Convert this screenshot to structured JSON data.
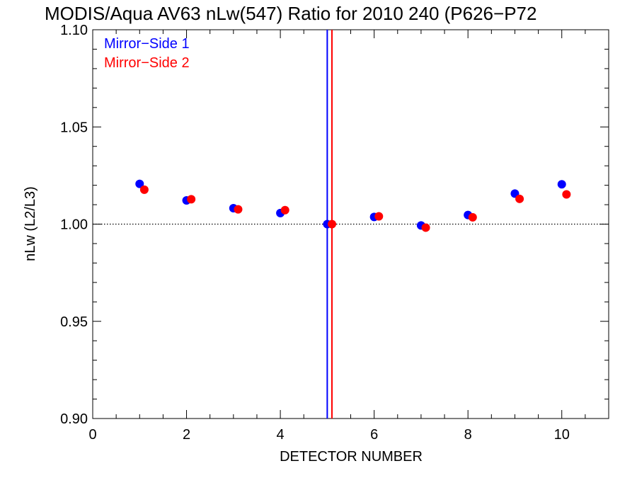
{
  "chart_data": {
    "type": "scatter",
    "title": "MODIS/Aqua AV63 nLw(547) Ratio for 2010 240 (P626−P72",
    "xlabel": "DETECTOR NUMBER",
    "ylabel": "nLw (L2/L3)",
    "xlim": [
      0,
      11
    ],
    "ylim": [
      0.9,
      1.1
    ],
    "x_ticks": [
      {
        "value": 0,
        "label": "0"
      },
      {
        "value": 2,
        "label": "2"
      },
      {
        "value": 4,
        "label": "4"
      },
      {
        "value": 6,
        "label": "6"
      },
      {
        "value": 8,
        "label": "8"
      },
      {
        "value": 10,
        "label": "10"
      }
    ],
    "y_ticks": [
      {
        "value": 0.9,
        "label": "0.90"
      },
      {
        "value": 0.95,
        "label": "0.95"
      },
      {
        "value": 1.0,
        "label": "1.00"
      },
      {
        "value": 1.05,
        "label": "1.05"
      },
      {
        "value": 1.1,
        "label": "1.10"
      }
    ],
    "reference_line_y": 1.0,
    "legend_position": "top-left",
    "series": [
      {
        "name": "Mirror−Side 1",
        "color": "#0000ff",
        "x": [
          1,
          2,
          3,
          4,
          5,
          6,
          7,
          8,
          9,
          10
        ],
        "y": [
          1.0207,
          1.0122,
          1.0082,
          1.0057,
          1.0,
          1.0037,
          0.9993,
          1.0047,
          1.0157,
          1.0205
        ],
        "vline_x": 5.0
      },
      {
        "name": "Mirror−Side 2",
        "color": "#ff0000",
        "x": [
          1.1,
          2.1,
          3.1,
          4.1,
          5.1,
          6.1,
          7.1,
          8.1,
          9.1,
          10.1
        ],
        "y": [
          1.0177,
          1.0128,
          1.0076,
          1.0072,
          1.0,
          1.004,
          0.9982,
          1.0035,
          1.013,
          1.0153
        ],
        "vline_x": 5.1
      }
    ]
  }
}
